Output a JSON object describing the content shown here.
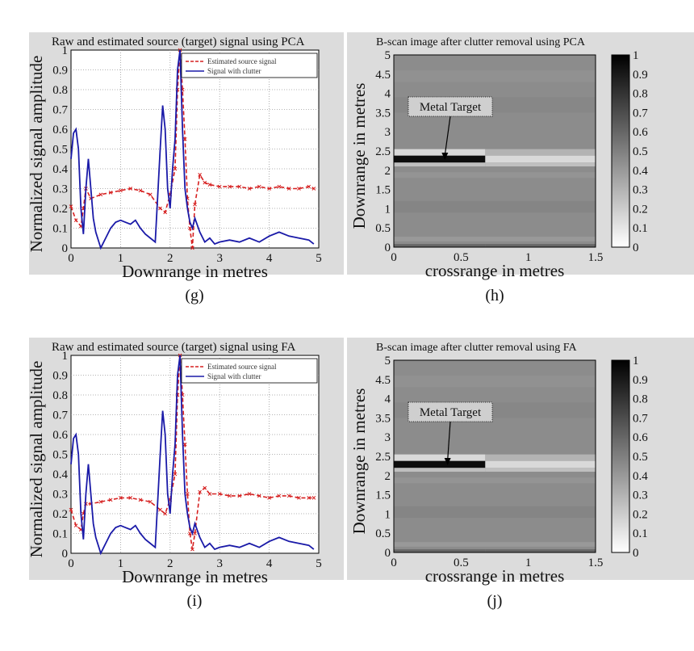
{
  "chart_data": [
    {
      "id": "g",
      "type": "line",
      "caption": "(g)",
      "title": "Raw and estimated source (target) signal using PCA",
      "xlabel": "Downrange in metres",
      "ylabel": "Normalized signal amplitude",
      "xlim": [
        0,
        5
      ],
      "ylim": [
        0,
        1
      ],
      "xticks": [
        "0",
        "1",
        "2",
        "3",
        "4",
        "5"
      ],
      "yticks": [
        "0",
        "0.1",
        "0.2",
        "0.3",
        "0.4",
        "0.5",
        "0.6",
        "0.7",
        "0.8",
        "0.9",
        "1"
      ],
      "grid": true,
      "legend_position": "top-right",
      "series": [
        {
          "name": "Estimated source signal",
          "color": "#d62020",
          "style": "dashed-x",
          "x": [
            0,
            0.1,
            0.2,
            0.25,
            0.3,
            0.4,
            0.6,
            0.8,
            1.0,
            1.2,
            1.4,
            1.6,
            1.8,
            1.9,
            2.0,
            2.1,
            2.15,
            2.2,
            2.25,
            2.3,
            2.35,
            2.4,
            2.45,
            2.5,
            2.6,
            2.7,
            2.8,
            3.0,
            3.2,
            3.4,
            3.6,
            3.8,
            4.0,
            4.2,
            4.4,
            4.6,
            4.8,
            4.9
          ],
          "values": [
            0.21,
            0.14,
            0.11,
            0.2,
            0.3,
            0.25,
            0.27,
            0.28,
            0.29,
            0.3,
            0.29,
            0.27,
            0.2,
            0.18,
            0.27,
            0.4,
            0.8,
            1.0,
            0.8,
            0.55,
            0.25,
            0.1,
            0.0,
            0.22,
            0.37,
            0.33,
            0.32,
            0.31,
            0.31,
            0.31,
            0.3,
            0.31,
            0.3,
            0.31,
            0.3,
            0.3,
            0.31,
            0.3
          ]
        },
        {
          "name": "Signal with clutter",
          "color": "#1a1aa8",
          "style": "solid",
          "x": [
            0,
            0.05,
            0.1,
            0.15,
            0.2,
            0.25,
            0.3,
            0.35,
            0.4,
            0.45,
            0.5,
            0.6,
            0.7,
            0.8,
            0.9,
            1.0,
            1.1,
            1.2,
            1.3,
            1.4,
            1.5,
            1.6,
            1.7,
            1.8,
            1.85,
            1.9,
            1.95,
            2.0,
            2.05,
            2.1,
            2.15,
            2.2,
            2.25,
            2.3,
            2.35,
            2.4,
            2.45,
            2.5,
            2.6,
            2.7,
            2.8,
            2.9,
            3.0,
            3.2,
            3.4,
            3.6,
            3.8,
            4.0,
            4.2,
            4.4,
            4.6,
            4.8,
            4.9
          ],
          "values": [
            0.45,
            0.58,
            0.6,
            0.5,
            0.2,
            0.07,
            0.3,
            0.45,
            0.3,
            0.15,
            0.08,
            0.0,
            0.05,
            0.1,
            0.13,
            0.14,
            0.13,
            0.12,
            0.14,
            0.1,
            0.07,
            0.05,
            0.03,
            0.5,
            0.72,
            0.6,
            0.3,
            0.2,
            0.4,
            0.55,
            0.9,
            1.0,
            0.6,
            0.3,
            0.2,
            0.13,
            0.1,
            0.15,
            0.08,
            0.03,
            0.05,
            0.02,
            0.03,
            0.04,
            0.03,
            0.05,
            0.03,
            0.06,
            0.08,
            0.06,
            0.05,
            0.04,
            0.02
          ]
        }
      ]
    },
    {
      "id": "h",
      "type": "heatmap",
      "caption": "(h)",
      "title": "B-scan image after clutter removal using PCA",
      "xlabel": "crossrange in metres",
      "ylabel": "Downrange in metres",
      "xlim": [
        0,
        1.5
      ],
      "ylim": [
        0,
        5
      ],
      "xticks": [
        "0",
        "0.5",
        "1",
        "1.5"
      ],
      "yticks": [
        "0",
        "0.5",
        "1",
        "1.5",
        "2",
        "2.5",
        "3",
        "3.5",
        "4",
        "4.5",
        "5"
      ],
      "colorbar": {
        "min": 0,
        "max": 1,
        "ticks": [
          "0",
          "0.1",
          "0.2",
          "0.3",
          "0.4",
          "0.5",
          "0.6",
          "0.7",
          "0.8",
          "0.9",
          "1"
        ]
      },
      "annotation": {
        "text": "Metal Target",
        "target_x": 0.38,
        "target_y": 2.27
      }
    },
    {
      "id": "i",
      "type": "line",
      "caption": "(i)",
      "title": "Raw and estimated source (target) signal using FA",
      "xlabel": "Downrange in metres",
      "ylabel": "Normalized signal amplitude",
      "xlim": [
        0,
        5
      ],
      "ylim": [
        0,
        1
      ],
      "xticks": [
        "0",
        "1",
        "2",
        "3",
        "4",
        "5"
      ],
      "yticks": [
        "0",
        "0.1",
        "0.2",
        "0.3",
        "0.4",
        "0.5",
        "0.6",
        "0.7",
        "0.8",
        "0.9",
        "1"
      ],
      "grid": true,
      "legend_position": "top-right",
      "series": [
        {
          "name": "Estimated source signal",
          "color": "#d62020",
          "style": "dashed-x",
          "x": [
            0,
            0.1,
            0.2,
            0.25,
            0.3,
            0.4,
            0.6,
            0.8,
            1.0,
            1.2,
            1.4,
            1.6,
            1.8,
            1.9,
            2.0,
            2.1,
            2.15,
            2.2,
            2.25,
            2.3,
            2.35,
            2.4,
            2.45,
            2.5,
            2.6,
            2.7,
            2.8,
            3.0,
            3.2,
            3.4,
            3.6,
            3.8,
            4.0,
            4.2,
            4.4,
            4.6,
            4.8,
            4.9
          ],
          "values": [
            0.22,
            0.14,
            0.12,
            0.2,
            0.25,
            0.25,
            0.26,
            0.27,
            0.28,
            0.28,
            0.27,
            0.26,
            0.22,
            0.2,
            0.27,
            0.4,
            0.8,
            1.0,
            0.8,
            0.55,
            0.3,
            0.1,
            0.02,
            0.1,
            0.31,
            0.33,
            0.3,
            0.3,
            0.29,
            0.29,
            0.3,
            0.29,
            0.28,
            0.29,
            0.29,
            0.28,
            0.28,
            0.28
          ]
        },
        {
          "name": "Signal with clutter",
          "color": "#1a1aa8",
          "style": "solid",
          "x": [
            0,
            0.05,
            0.1,
            0.15,
            0.2,
            0.25,
            0.3,
            0.35,
            0.4,
            0.45,
            0.5,
            0.6,
            0.7,
            0.8,
            0.9,
            1.0,
            1.1,
            1.2,
            1.3,
            1.4,
            1.5,
            1.6,
            1.7,
            1.8,
            1.85,
            1.9,
            1.95,
            2.0,
            2.05,
            2.1,
            2.15,
            2.2,
            2.25,
            2.3,
            2.35,
            2.4,
            2.45,
            2.5,
            2.6,
            2.7,
            2.8,
            2.9,
            3.0,
            3.2,
            3.4,
            3.6,
            3.8,
            4.0,
            4.2,
            4.4,
            4.6,
            4.8,
            4.9
          ],
          "values": [
            0.45,
            0.58,
            0.6,
            0.5,
            0.2,
            0.07,
            0.3,
            0.45,
            0.3,
            0.15,
            0.08,
            0.0,
            0.05,
            0.1,
            0.13,
            0.14,
            0.13,
            0.12,
            0.14,
            0.1,
            0.07,
            0.05,
            0.03,
            0.5,
            0.72,
            0.6,
            0.3,
            0.2,
            0.4,
            0.55,
            0.9,
            1.0,
            0.6,
            0.3,
            0.2,
            0.13,
            0.1,
            0.15,
            0.08,
            0.03,
            0.05,
            0.02,
            0.03,
            0.04,
            0.03,
            0.05,
            0.03,
            0.06,
            0.08,
            0.06,
            0.05,
            0.04,
            0.02
          ]
        }
      ]
    },
    {
      "id": "j",
      "type": "heatmap",
      "caption": "(j)",
      "title": "B-scan image after clutter removal using FA",
      "xlabel": "crossrange in metres",
      "ylabel": "Downrange in metres",
      "xlim": [
        0,
        1.5
      ],
      "ylim": [
        0,
        5
      ],
      "xticks": [
        "0",
        "0.5",
        "1",
        "1.5"
      ],
      "yticks": [
        "0",
        "0.5",
        "1",
        "1.5",
        "2",
        "2.5",
        "3",
        "3.5",
        "4",
        "4.5",
        "5"
      ],
      "colorbar": {
        "min": 0,
        "max": 1,
        "ticks": [
          "0",
          "0.1",
          "0.2",
          "0.3",
          "0.4",
          "0.5",
          "0.6",
          "0.7",
          "0.8",
          "0.9",
          "1"
        ]
      },
      "annotation": {
        "text": "Metal Target",
        "target_x": 0.4,
        "target_y": 2.27
      }
    }
  ]
}
